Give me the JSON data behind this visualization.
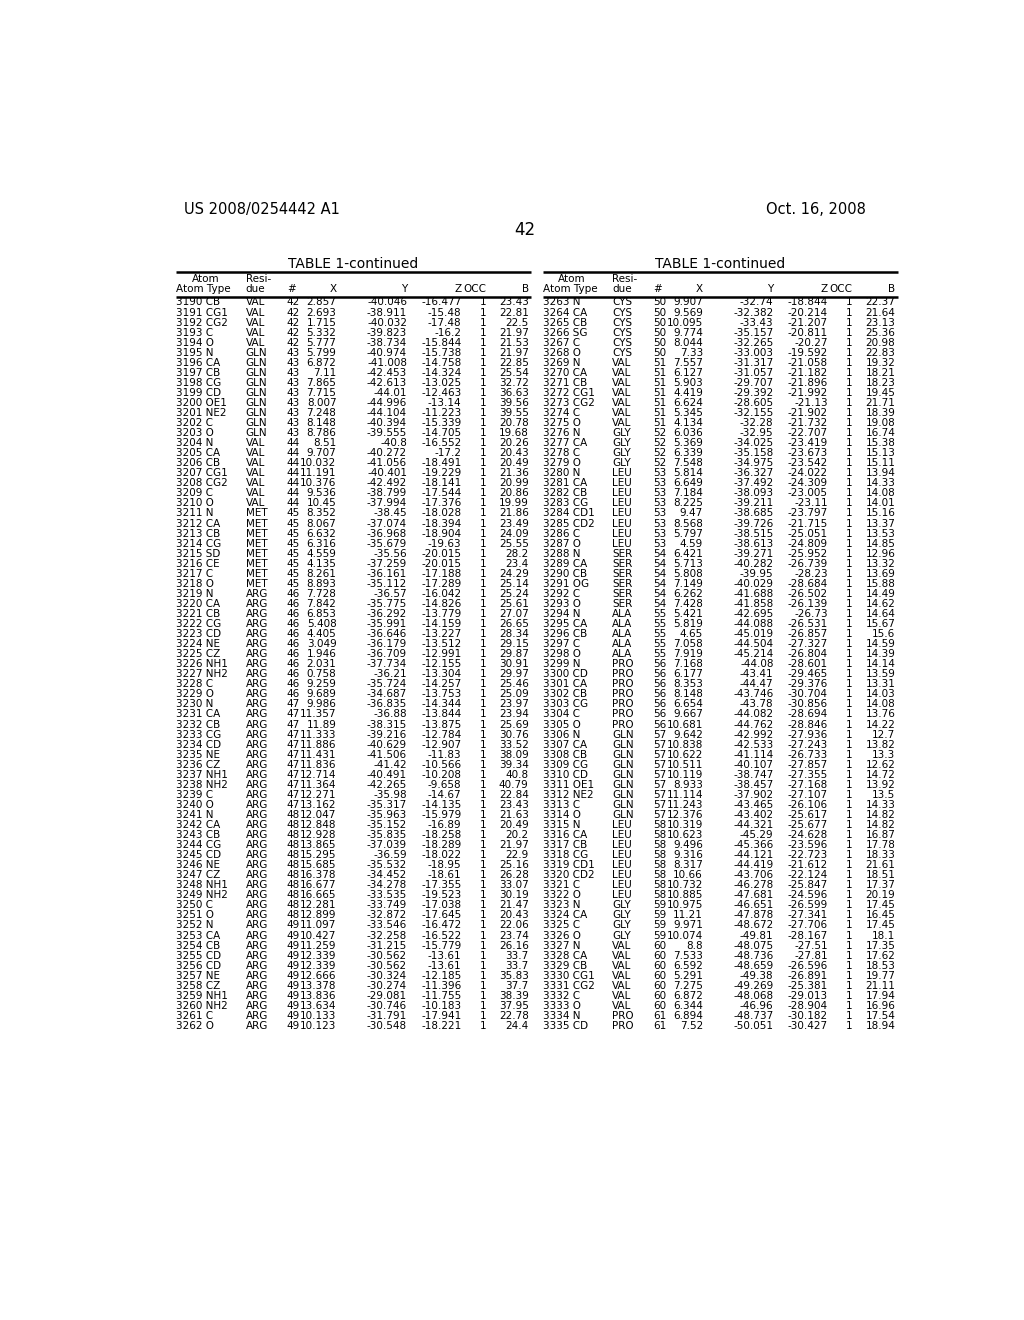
{
  "header_left": "US 2008/0254442 A1",
  "header_right": "Oct. 16, 2008",
  "page_number": "42",
  "table_title": "TABLE 1-continued",
  "left_data": [
    [
      "3190 CB",
      "VAL",
      "42",
      "2.857",
      "-40.046",
      "-16.477",
      "1",
      "23.43"
    ],
    [
      "3191 CG1",
      "VAL",
      "42",
      "2.693",
      "-38.911",
      "-15.48",
      "1",
      "22.81"
    ],
    [
      "3192 CG2",
      "VAL",
      "42",
      "1.715",
      "-40.032",
      "-17.48",
      "1",
      "22.5"
    ],
    [
      "3193 C",
      "VAL",
      "42",
      "5.332",
      "-39.823",
      "-16.2",
      "1",
      "21.97"
    ],
    [
      "3194 O",
      "VAL",
      "42",
      "5.777",
      "-38.734",
      "-15.844",
      "1",
      "21.53"
    ],
    [
      "3195 N",
      "GLN",
      "43",
      "5.799",
      "-40.974",
      "-15.738",
      "1",
      "21.97"
    ],
    [
      "3196 CA",
      "GLN",
      "43",
      "6.872",
      "-41.008",
      "-14.758",
      "1",
      "22.85"
    ],
    [
      "3197 CB",
      "GLN",
      "43",
      "7.11",
      "-42.453",
      "-14.324",
      "1",
      "25.54"
    ],
    [
      "3198 CG",
      "GLN",
      "43",
      "7.865",
      "-42.613",
      "-13.025",
      "1",
      "32.72"
    ],
    [
      "3199 CD",
      "GLN",
      "43",
      "7.715",
      "-44.01",
      "-12.463",
      "1",
      "36.63"
    ],
    [
      "3200 OE1",
      "GLN",
      "43",
      "8.007",
      "-44.996",
      "-13.14",
      "1",
      "39.56"
    ],
    [
      "3201 NE2",
      "GLN",
      "43",
      "7.248",
      "-44.104",
      "-11.223",
      "1",
      "39.55"
    ],
    [
      "3202 C",
      "GLN",
      "43",
      "8.148",
      "-40.394",
      "-15.339",
      "1",
      "20.78"
    ],
    [
      "3203 O",
      "GLN",
      "43",
      "8.786",
      "-39.555",
      "-14.705",
      "1",
      "19.68"
    ],
    [
      "3204 N",
      "VAL",
      "44",
      "8.51",
      "-40.8",
      "-16.552",
      "1",
      "20.26"
    ],
    [
      "3205 CA",
      "VAL",
      "44",
      "9.707",
      "-40.272",
      "-17.2",
      "1",
      "20.43"
    ],
    [
      "3206 CB",
      "VAL",
      "44",
      "10.032",
      "-41.056",
      "-18.491",
      "1",
      "20.49"
    ],
    [
      "3207 CG1",
      "VAL",
      "44",
      "11.191",
      "-40.401",
      "-19.229",
      "1",
      "21.36"
    ],
    [
      "3208 CG2",
      "VAL",
      "44",
      "10.376",
      "-42.492",
      "-18.141",
      "1",
      "20.99"
    ],
    [
      "3209 C",
      "VAL",
      "44",
      "9.536",
      "-38.799",
      "-17.544",
      "1",
      "20.86"
    ],
    [
      "3210 O",
      "VAL",
      "44",
      "10.45",
      "-37.994",
      "-17.376",
      "1",
      "19.99"
    ],
    [
      "3211 N",
      "MET",
      "45",
      "8.352",
      "-38.45",
      "-18.028",
      "1",
      "21.86"
    ],
    [
      "3212 CA",
      "MET",
      "45",
      "8.067",
      "-37.074",
      "-18.394",
      "1",
      "23.49"
    ],
    [
      "3213 CB",
      "MET",
      "45",
      "6.632",
      "-36.968",
      "-18.904",
      "1",
      "24.09"
    ],
    [
      "3214 CG",
      "MET",
      "45",
      "6.316",
      "-35.679",
      "-19.63",
      "1",
      "25.55"
    ],
    [
      "3215 SD",
      "MET",
      "45",
      "4.559",
      "-35.56",
      "-20.015",
      "1",
      "28.2"
    ],
    [
      "3216 CE",
      "MET",
      "45",
      "4.135",
      "-37.259",
      "-20.015",
      "1",
      "23.4"
    ],
    [
      "3217 C",
      "MET",
      "45",
      "8.261",
      "-36.161",
      "-17.188",
      "1",
      "24.29"
    ],
    [
      "3218 O",
      "MET",
      "45",
      "8.893",
      "-35.112",
      "-17.289",
      "1",
      "25.14"
    ],
    [
      "3219 N",
      "ARG",
      "46",
      "7.728",
      "-36.57",
      "-16.042",
      "1",
      "25.24"
    ],
    [
      "3220 CA",
      "ARG",
      "46",
      "7.842",
      "-35.775",
      "-14.826",
      "1",
      "25.61"
    ],
    [
      "3221 CB",
      "ARG",
      "46",
      "6.853",
      "-36.292",
      "-13.779",
      "1",
      "27.07"
    ],
    [
      "3222 CG",
      "ARG",
      "46",
      "5.408",
      "-35.991",
      "-14.159",
      "1",
      "26.65"
    ],
    [
      "3223 CD",
      "ARG",
      "46",
      "4.405",
      "-36.646",
      "-13.227",
      "1",
      "28.34"
    ],
    [
      "3224 NE",
      "ARG",
      "46",
      "3.049",
      "-36.179",
      "-13.512",
      "1",
      "29.15"
    ],
    [
      "3225 CZ",
      "ARG",
      "46",
      "1.946",
      "-36.709",
      "-12.991",
      "1",
      "29.87"
    ],
    [
      "3226 NH1",
      "ARG",
      "46",
      "2.031",
      "-37.734",
      "-12.155",
      "1",
      "30.91"
    ],
    [
      "3227 NH2",
      "ARG",
      "46",
      "0.758",
      "-36.21",
      "-13.304",
      "1",
      "29.97"
    ],
    [
      "3228 C",
      "ARG",
      "46",
      "9.259",
      "-35.724",
      "-14.257",
      "1",
      "25.46"
    ],
    [
      "3229 O",
      "ARG",
      "46",
      "9.689",
      "-34.687",
      "-13.753",
      "1",
      "25.09"
    ],
    [
      "3230 N",
      "ARG",
      "47",
      "9.986",
      "-36.835",
      "-14.344",
      "1",
      "23.97"
    ],
    [
      "3231 CA",
      "ARG",
      "47",
      "11.357",
      "-36.88",
      "-13.844",
      "1",
      "23.94"
    ],
    [
      "3232 CB",
      "ARG",
      "47",
      "11.89",
      "-38.315",
      "-13.875",
      "1",
      "25.69"
    ],
    [
      "3233 CG",
      "ARG",
      "47",
      "11.333",
      "-39.216",
      "-12.784",
      "1",
      "30.76"
    ],
    [
      "3234 CD",
      "ARG",
      "47",
      "11.886",
      "-40.629",
      "-12.907",
      "1",
      "33.52"
    ],
    [
      "3235 NE",
      "ARG",
      "47",
      "11.431",
      "-41.506",
      "-11.83",
      "1",
      "38.09"
    ],
    [
      "3236 CZ",
      "ARG",
      "47",
      "11.836",
      "-41.42",
      "-10.566",
      "1",
      "39.34"
    ],
    [
      "3237 NH1",
      "ARG",
      "47",
      "12.714",
      "-40.491",
      "-10.208",
      "1",
      "40.8"
    ],
    [
      "3238 NH2",
      "ARG",
      "47",
      "11.364",
      "-42.265",
      "-9.658",
      "1",
      "40.79"
    ],
    [
      "3239 C",
      "ARG",
      "47",
      "12.271",
      "-35.98",
      "-14.67",
      "1",
      "22.84"
    ],
    [
      "3240 O",
      "ARG",
      "47",
      "13.162",
      "-35.317",
      "-14.135",
      "1",
      "23.43"
    ],
    [
      "3241 N",
      "ARG",
      "48",
      "12.047",
      "-35.963",
      "-15.979",
      "1",
      "21.63"
    ],
    [
      "3242 CA",
      "ARG",
      "48",
      "12.848",
      "-35.152",
      "-16.89",
      "1",
      "20.49"
    ],
    [
      "3243 CB",
      "ARG",
      "48",
      "12.928",
      "-35.835",
      "-18.258",
      "1",
      "20.2"
    ],
    [
      "3244 CG",
      "ARG",
      "48",
      "13.865",
      "-37.039",
      "-18.289",
      "1",
      "21.97"
    ],
    [
      "3245 CD",
      "ARG",
      "48",
      "15.295",
      "-36.59",
      "-18.022",
      "1",
      "22.9"
    ],
    [
      "3246 NE",
      "ARG",
      "48",
      "15.685",
      "-35.532",
      "-18.95",
      "1",
      "25.16"
    ],
    [
      "3247 CZ",
      "ARG",
      "48",
      "16.378",
      "-34.452",
      "-18.61",
      "1",
      "26.28"
    ],
    [
      "3248 NH1",
      "ARG",
      "48",
      "16.677",
      "-34.278",
      "-17.355",
      "1",
      "33.07"
    ],
    [
      "3249 NH2",
      "ARG",
      "48",
      "16.665",
      "-33.535",
      "-19.523",
      "1",
      "30.19"
    ],
    [
      "3250 C",
      "ARG",
      "48",
      "12.281",
      "-33.749",
      "-17.038",
      "1",
      "21.47"
    ],
    [
      "3251 O",
      "ARG",
      "48",
      "12.899",
      "-32.872",
      "-17.645",
      "1",
      "20.43"
    ],
    [
      "3252 N",
      "ARG",
      "49",
      "11.097",
      "-33.546",
      "-16.472",
      "1",
      "22.06"
    ],
    [
      "3253 CA",
      "ARG",
      "49",
      "10.427",
      "-32.258",
      "-16.522",
      "1",
      "23.74"
    ],
    [
      "3254 CB",
      "ARG",
      "49",
      "11.259",
      "-31.215",
      "-15.779",
      "1",
      "26.16"
    ],
    [
      "3255 CD",
      "ARG",
      "49",
      "12.339",
      "-30.562",
      "-13.61",
      "1",
      "33.7"
    ],
    [
      "3256 CD",
      "ARG",
      "49",
      "12.339",
      "-30.562",
      "-13.61",
      "1",
      "33.7"
    ],
    [
      "3257 NE",
      "ARG",
      "49",
      "12.666",
      "-30.324",
      "-12.185",
      "1",
      "35.83"
    ],
    [
      "3258 CZ",
      "ARG",
      "49",
      "13.378",
      "-30.274",
      "-11.396",
      "1",
      "37.7"
    ],
    [
      "3259 NH1",
      "ARG",
      "49",
      "13.836",
      "-29.081",
      "-11.755",
      "1",
      "38.39"
    ],
    [
      "3260 NH2",
      "ARG",
      "49",
      "13.634",
      "-30.746",
      "-10.183",
      "1",
      "37.95"
    ],
    [
      "3261 C",
      "ARG",
      "49",
      "10.133",
      "-31.791",
      "-17.941",
      "1",
      "22.78"
    ],
    [
      "3262 O",
      "ARG",
      "49",
      "10.123",
      "-30.548",
      "-18.221",
      "1",
      "24.4"
    ]
  ],
  "right_data": [
    [
      "3263 N",
      "CYS",
      "50",
      "9.907",
      "-32.74",
      "-18.844",
      "1",
      "22.37"
    ],
    [
      "3264 CA",
      "CYS",
      "50",
      "9.569",
      "-32.382",
      "-20.214",
      "1",
      "21.64"
    ],
    [
      "3265 CB",
      "CYS",
      "50",
      "10.095",
      "-33.43",
      "-21.207",
      "1",
      "23.13"
    ],
    [
      "3266 SG",
      "CYS",
      "50",
      "9.774",
      "-35.157",
      "-20.811",
      "1",
      "25.36"
    ],
    [
      "3267 C",
      "CYS",
      "50",
      "8.044",
      "-32.265",
      "-20.27",
      "1",
      "20.98"
    ],
    [
      "3268 O",
      "CYS",
      "50",
      "7.33",
      "-33.003",
      "-19.592",
      "1",
      "22.83"
    ],
    [
      "3269 N",
      "VAL",
      "51",
      "7.557",
      "-31.317",
      "-21.058",
      "1",
      "19.32"
    ],
    [
      "3270 CA",
      "VAL",
      "51",
      "6.127",
      "-31.057",
      "-21.182",
      "1",
      "18.21"
    ],
    [
      "3271 CB",
      "VAL",
      "51",
      "5.903",
      "-29.707",
      "-21.896",
      "1",
      "18.23"
    ],
    [
      "3272 CG1",
      "VAL",
      "51",
      "4.419",
      "-29.392",
      "-21.992",
      "1",
      "19.45"
    ],
    [
      "3273 CG2",
      "VAL",
      "51",
      "6.624",
      "-28.605",
      "-21.13",
      "1",
      "21.71"
    ],
    [
      "3274 C",
      "VAL",
      "51",
      "5.345",
      "-32.155",
      "-21.902",
      "1",
      "18.39"
    ],
    [
      "3275 O",
      "VAL",
      "51",
      "4.134",
      "-32.28",
      "-21.732",
      "1",
      "19.08"
    ],
    [
      "3276 N",
      "GLY",
      "52",
      "6.036",
      "-32.95",
      "-22.707",
      "1",
      "16.74"
    ],
    [
      "3277 CA",
      "GLY",
      "52",
      "5.369",
      "-34.025",
      "-23.419",
      "1",
      "15.38"
    ],
    [
      "3278 C",
      "GLY",
      "52",
      "6.339",
      "-35.158",
      "-23.673",
      "1",
      "15.13"
    ],
    [
      "3279 O",
      "GLY",
      "52",
      "7.548",
      "-34.975",
      "-23.542",
      "1",
      "15.11"
    ],
    [
      "3280 N",
      "LEU",
      "53",
      "5.814",
      "-36.327",
      "-24.022",
      "1",
      "13.94"
    ],
    [
      "3281 CA",
      "LEU",
      "53",
      "6.649",
      "-37.492",
      "-24.309",
      "1",
      "14.33"
    ],
    [
      "3282 CB",
      "LEU",
      "53",
      "7.184",
      "-38.093",
      "-23.005",
      "1",
      "14.08"
    ],
    [
      "3283 CG",
      "LEU",
      "53",
      "8.225",
      "-39.211",
      "-23.11",
      "1",
      "14.01"
    ],
    [
      "3284 CD1",
      "LEU",
      "53",
      "9.47",
      "-38.685",
      "-23.797",
      "1",
      "15.16"
    ],
    [
      "3285 CD2",
      "LEU",
      "53",
      "8.568",
      "-39.726",
      "-21.715",
      "1",
      "13.37"
    ],
    [
      "3286 C",
      "LEU",
      "53",
      "5.797",
      "-38.515",
      "-25.051",
      "1",
      "13.53"
    ],
    [
      "3287 O",
      "LEU",
      "53",
      "4.59",
      "-38.613",
      "-24.809",
      "1",
      "14.85"
    ],
    [
      "3288 N",
      "SER",
      "54",
      "6.421",
      "-39.271",
      "-25.952",
      "1",
      "12.96"
    ],
    [
      "3289 CA",
      "SER",
      "54",
      "5.713",
      "-40.282",
      "-26.739",
      "1",
      "13.32"
    ],
    [
      "3290 CB",
      "SER",
      "54",
      "5.808",
      "-39.95",
      "-28.23",
      "1",
      "13.69"
    ],
    [
      "3291 OG",
      "SER",
      "54",
      "7.149",
      "-40.029",
      "-28.684",
      "1",
      "15.88"
    ],
    [
      "3292 C",
      "SER",
      "54",
      "6.262",
      "-41.688",
      "-26.502",
      "1",
      "14.49"
    ],
    [
      "3293 O",
      "SER",
      "54",
      "7.428",
      "-41.858",
      "-26.139",
      "1",
      "14.62"
    ],
    [
      "3294 N",
      "ALA",
      "55",
      "5.421",
      "-42.695",
      "-26.73",
      "1",
      "14.64"
    ],
    [
      "3295 CA",
      "ALA",
      "55",
      "5.819",
      "-44.088",
      "-26.531",
      "1",
      "15.67"
    ],
    [
      "3296 CB",
      "ALA",
      "55",
      "4.65",
      "-45.019",
      "-26.857",
      "1",
      "15.6"
    ],
    [
      "3297 C",
      "ALA",
      "55",
      "7.058",
      "-44.504",
      "-27.327",
      "1",
      "14.59"
    ],
    [
      "3298 O",
      "ALA",
      "55",
      "7.919",
      "-45.214",
      "-26.804",
      "1",
      "14.39"
    ],
    [
      "3299 N",
      "PRO",
      "56",
      "7.168",
      "-44.08",
      "-28.601",
      "1",
      "14.14"
    ],
    [
      "3300 CD",
      "PRO",
      "56",
      "6.177",
      "-43.41",
      "-29.465",
      "1",
      "13.59"
    ],
    [
      "3301 CA",
      "PRO",
      "56",
      "8.353",
      "-44.47",
      "-29.376",
      "1",
      "13.31"
    ],
    [
      "3302 CB",
      "PRO",
      "56",
      "8.148",
      "-43.746",
      "-30.704",
      "1",
      "14.03"
    ],
    [
      "3303 CG",
      "PRO",
      "56",
      "6.654",
      "-43.78",
      "-30.856",
      "1",
      "14.08"
    ],
    [
      "3304 C",
      "PRO",
      "56",
      "9.667",
      "-44.082",
      "-28.694",
      "1",
      "13.76"
    ],
    [
      "3305 O",
      "PRO",
      "56",
      "10.681",
      "-44.762",
      "-28.846",
      "1",
      "14.22"
    ],
    [
      "3306 N",
      "GLN",
      "57",
      "9.642",
      "-42.992",
      "-27.936",
      "1",
      "12.7"
    ],
    [
      "3307 CA",
      "GLN",
      "57",
      "10.838",
      "-42.533",
      "-27.243",
      "1",
      "13.82"
    ],
    [
      "3308 CB",
      "GLN",
      "57",
      "10.622",
      "-41.114",
      "-26.733",
      "1",
      "13.3"
    ],
    [
      "3309 CG",
      "GLN",
      "57",
      "10.511",
      "-40.107",
      "-27.857",
      "1",
      "12.62"
    ],
    [
      "3310 CD",
      "GLN",
      "57",
      "10.119",
      "-38.747",
      "-27.355",
      "1",
      "14.72"
    ],
    [
      "3311 OE1",
      "GLN",
      "57",
      "8.933",
      "-38.457",
      "-27.168",
      "1",
      "13.92"
    ],
    [
      "3312 NE2",
      "GLN",
      "57",
      "11.114",
      "-37.902",
      "-27.107",
      "1",
      "13.5"
    ],
    [
      "3313 C",
      "GLN",
      "57",
      "11.243",
      "-43.465",
      "-26.106",
      "1",
      "14.33"
    ],
    [
      "3314 O",
      "GLN",
      "57",
      "12.376",
      "-43.402",
      "-25.617",
      "1",
      "14.82"
    ],
    [
      "3315 N",
      "LEU",
      "58",
      "10.319",
      "-44.321",
      "-25.677",
      "1",
      "14.82"
    ],
    [
      "3316 CA",
      "LEU",
      "58",
      "10.623",
      "-45.29",
      "-24.628",
      "1",
      "16.87"
    ],
    [
      "3317 CB",
      "LEU",
      "58",
      "9.496",
      "-45.366",
      "-23.596",
      "1",
      "17.78"
    ],
    [
      "3318 CG",
      "LEU",
      "58",
      "9.316",
      "-44.121",
      "-22.723",
      "1",
      "18.33"
    ],
    [
      "3319 CD1",
      "LEU",
      "58",
      "8.317",
      "-44.419",
      "-21.612",
      "1",
      "21.61"
    ],
    [
      "3320 CD2",
      "LEU",
      "58",
      "10.66",
      "-43.706",
      "-22.124",
      "1",
      "18.51"
    ],
    [
      "3321 C",
      "LEU",
      "58",
      "10.732",
      "-46.278",
      "-25.847",
      "1",
      "17.37"
    ],
    [
      "3322 O",
      "LEU",
      "58",
      "10.885",
      "-47.681",
      "-24.596",
      "1",
      "20.19"
    ],
    [
      "3323 N",
      "GLY",
      "59",
      "10.975",
      "-46.651",
      "-26.599",
      "1",
      "17.45"
    ],
    [
      "3324 CA",
      "GLY",
      "59",
      "11.21",
      "-47.878",
      "-27.341",
      "1",
      "16.45"
    ],
    [
      "3325 C",
      "GLY",
      "59",
      "9.971",
      "-48.672",
      "-27.706",
      "1",
      "17.45"
    ],
    [
      "3326 O",
      "GLY",
      "59",
      "10.074",
      "-49.81",
      "-28.167",
      "1",
      "18.1"
    ],
    [
      "3327 N",
      "VAL",
      "60",
      "8.8",
      "-48.075",
      "-27.51",
      "1",
      "17.35"
    ],
    [
      "3328 CA",
      "VAL",
      "60",
      "7.533",
      "-48.736",
      "-27.81",
      "1",
      "17.62"
    ],
    [
      "3329 CB",
      "VAL",
      "60",
      "6.592",
      "-48.659",
      "-26.596",
      "1",
      "18.53"
    ],
    [
      "3330 CG1",
      "VAL",
      "60",
      "5.291",
      "-49.38",
      "-26.891",
      "1",
      "19.77"
    ],
    [
      "3331 CG2",
      "VAL",
      "60",
      "7.275",
      "-49.269",
      "-25.381",
      "1",
      "21.11"
    ],
    [
      "3332 C",
      "VAL",
      "60",
      "6.872",
      "-48.068",
      "-29.013",
      "1",
      "17.94"
    ],
    [
      "3333 O",
      "VAL",
      "60",
      "6.344",
      "-46.96",
      "-28.904",
      "1",
      "16.96"
    ],
    [
      "3334 N",
      "PRO",
      "61",
      "6.894",
      "-48.737",
      "-30.182",
      "1",
      "17.54"
    ],
    [
      "3335 CD",
      "PRO",
      "61",
      "7.52",
      "-50.051",
      "-30.427",
      "1",
      "18.94"
    ]
  ],
  "bg_color": "#ffffff",
  "text_color": "#000000"
}
